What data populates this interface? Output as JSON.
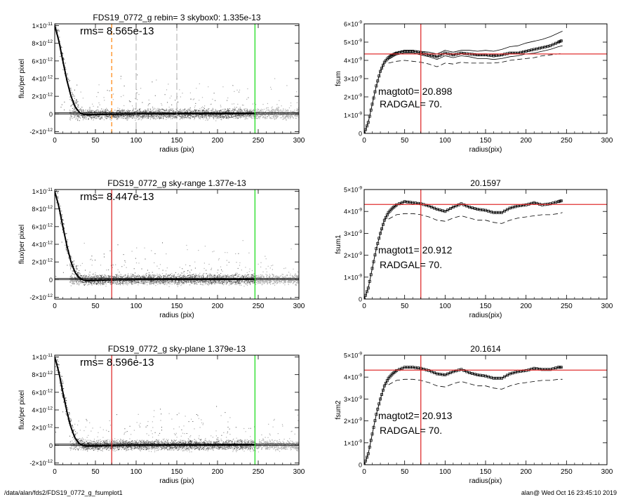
{
  "footer": {
    "left": "/data/alan/fds2/FDS19_0772_g_fsumplot1",
    "right": "alan@  Wed Oct 16 23:45:10 2019"
  },
  "colors": {
    "red": "#e03030",
    "green": "#22dd22",
    "orange": "#ff8c1a",
    "scatter_dark": "#4a4a4a",
    "scatter_light": "#b0b0b0"
  },
  "chart_data": [
    {
      "id": "p1",
      "type": "scatter",
      "title": "FDS19_0772_g rebin= 3    skybox0:  1.335e-13",
      "annotations": [
        "rms= 8.565e-13"
      ],
      "xlabel": "radius (pix)",
      "ylabel": "flux/per pixel",
      "xlim": [
        0,
        300
      ],
      "ylim": [
        -2.2e-12,
        1.02e-11
      ],
      "xticks": [
        0,
        50,
        100,
        150,
        200,
        250,
        300
      ],
      "yticks": [
        {
          "v": -2e-12,
          "m": "-2",
          "e": "-12"
        },
        {
          "v": 0,
          "m": "0",
          "e": ""
        },
        {
          "v": 2e-12,
          "m": "2",
          "e": "-12"
        },
        {
          "v": 4e-12,
          "m": "4",
          "e": "-12"
        },
        {
          "v": 6e-12,
          "m": "6",
          "e": "-12"
        },
        {
          "v": 8e-12,
          "m": "8",
          "e": "-12"
        },
        {
          "v": 1e-11,
          "m": "1",
          "e": "-11"
        }
      ],
      "profile": [
        [
          0,
          1e-11
        ],
        [
          5,
          8.3e-12
        ],
        [
          10,
          6e-12
        ],
        [
          15,
          3.8e-12
        ],
        [
          20,
          2e-12
        ],
        [
          25,
          8e-13
        ],
        [
          30,
          2e-13
        ],
        [
          35,
          -5e-14
        ],
        [
          40,
          -1e-13
        ],
        [
          50,
          -8e-14
        ],
        [
          60,
          -5e-14
        ],
        [
          80,
          -2e-14
        ],
        [
          100,
          0
        ],
        [
          150,
          2e-14
        ],
        [
          200,
          2e-14
        ],
        [
          245,
          4e-14
        ]
      ],
      "hlines": [
        0,
        1.3e-13
      ],
      "vlines": [
        {
          "x": 70,
          "color": "orange",
          "dash": true
        },
        {
          "x": 246,
          "color": "green",
          "dash": false
        },
        {
          "x": 100,
          "color": "gray",
          "dash": true
        },
        {
          "x": 150,
          "color": "gray",
          "dash": true
        }
      ]
    },
    {
      "id": "p2",
      "type": "line",
      "title": "",
      "annotations": [
        "magtot0=   20.898",
        "RADGAL=       70."
      ],
      "xlabel": "radius(pix)",
      "ylabel": "fsum",
      "xlim": [
        0,
        300
      ],
      "ylim": [
        0,
        6e-09
      ],
      "xticks": [
        0,
        50,
        100,
        150,
        200,
        250,
        300
      ],
      "yticks": [
        {
          "v": 0,
          "m": "0",
          "e": ""
        },
        {
          "v": 1e-09,
          "m": "1",
          "e": "-9"
        },
        {
          "v": 2e-09,
          "m": "2",
          "e": "-9"
        },
        {
          "v": 3e-09,
          "m": "3",
          "e": "-9"
        },
        {
          "v": 4e-09,
          "m": "4",
          "e": "-9"
        },
        {
          "v": 5e-09,
          "m": "5",
          "e": "-9"
        },
        {
          "v": 6e-09,
          "m": "6",
          "e": "-9"
        }
      ],
      "hline": 4.35e-09,
      "vline": 70,
      "series": [
        {
          "style": "squares",
          "x": [
            0,
            5,
            10,
            15,
            20,
            25,
            30,
            35,
            40,
            50,
            60,
            70,
            80,
            90,
            100,
            110,
            120,
            130,
            140,
            150,
            160,
            170,
            180,
            190,
            200,
            210,
            220,
            230,
            240,
            245
          ],
          "y": [
            0,
            0.6,
            1.6,
            2.6,
            3.4,
            3.9,
            4.15,
            4.3,
            4.4,
            4.5,
            4.5,
            4.42,
            4.3,
            4.2,
            4.4,
            4.3,
            4.4,
            4.35,
            4.3,
            4.3,
            4.25,
            4.3,
            4.4,
            4.4,
            4.5,
            4.6,
            4.7,
            4.8,
            5.0,
            5.1
          ]
        },
        {
          "style": "solid",
          "x": [
            30,
            40,
            50,
            60,
            70,
            80,
            90,
            100,
            110,
            120,
            130,
            140,
            150,
            160,
            170,
            180,
            190,
            200,
            210,
            220,
            230,
            240,
            245
          ],
          "y": [
            4.25,
            4.45,
            4.55,
            4.55,
            4.5,
            4.45,
            4.35,
            4.55,
            4.45,
            4.55,
            4.55,
            4.5,
            4.55,
            4.5,
            4.6,
            4.75,
            4.8,
            4.95,
            5.05,
            5.15,
            5.3,
            5.5,
            5.6
          ]
        },
        {
          "style": "solid",
          "x": [
            30,
            40,
            50,
            60,
            70,
            80,
            90,
            100,
            110,
            120,
            130,
            140,
            150,
            160,
            170,
            180,
            190,
            200,
            210,
            220,
            230,
            240,
            245
          ],
          "y": [
            4.05,
            4.3,
            4.4,
            4.4,
            4.3,
            4.2,
            4.05,
            4.25,
            4.15,
            4.25,
            4.2,
            4.1,
            4.1,
            4.05,
            4.1,
            4.2,
            4.25,
            4.35,
            4.4,
            4.5,
            4.6,
            4.75,
            4.8
          ]
        },
        {
          "style": "dashed",
          "x": [
            30,
            40,
            50,
            60,
            70,
            80,
            90,
            100,
            110,
            120,
            130,
            140,
            150,
            160,
            170,
            180,
            190,
            200,
            210,
            220,
            230,
            240,
            245
          ],
          "y": [
            3.85,
            3.95,
            4.0,
            3.95,
            3.9,
            3.8,
            3.65,
            3.85,
            3.8,
            3.9,
            3.85,
            3.85,
            3.85,
            3.85,
            3.9,
            4.0,
            4.05,
            4.1,
            4.15,
            4.25,
            4.3,
            4.35,
            4.4
          ]
        }
      ]
    },
    {
      "id": "p3",
      "type": "scatter",
      "title": "FDS19_0772_g sky-range  1.377e-13",
      "annotations": [
        "rms= 8.447e-13"
      ],
      "xlabel": "radius (pix)",
      "ylabel": "flux/per pixel",
      "xlim": [
        0,
        300
      ],
      "ylim": [
        -2.2e-12,
        1.02e-11
      ],
      "xticks": [
        0,
        50,
        100,
        150,
        200,
        250,
        300
      ],
      "yticks": [
        {
          "v": -2e-12,
          "m": "-2",
          "e": "-12"
        },
        {
          "v": 0,
          "m": "0",
          "e": ""
        },
        {
          "v": 2e-12,
          "m": "2",
          "e": "-12"
        },
        {
          "v": 4e-12,
          "m": "4",
          "e": "-12"
        },
        {
          "v": 6e-12,
          "m": "6",
          "e": "-12"
        },
        {
          "v": 8e-12,
          "m": "8",
          "e": "-12"
        },
        {
          "v": 1e-11,
          "m": "1",
          "e": "-11"
        }
      ],
      "profile": [
        [
          0,
          1e-11
        ],
        [
          5,
          8.3e-12
        ],
        [
          10,
          6e-12
        ],
        [
          15,
          3.8e-12
        ],
        [
          20,
          2e-12
        ],
        [
          25,
          8e-13
        ],
        [
          30,
          2e-13
        ],
        [
          35,
          -5e-14
        ],
        [
          40,
          -1e-13
        ],
        [
          50,
          -8e-14
        ],
        [
          60,
          -5e-14
        ],
        [
          80,
          -2e-14
        ],
        [
          100,
          0
        ],
        [
          150,
          2e-14
        ],
        [
          200,
          2e-14
        ],
        [
          245,
          4e-14
        ]
      ],
      "hlines": [
        0,
        1.3e-13
      ],
      "vlines": [
        {
          "x": 70,
          "color": "red",
          "dash": false
        },
        {
          "x": 246,
          "color": "green",
          "dash": false
        }
      ]
    },
    {
      "id": "p4",
      "type": "line",
      "title": "20.1597",
      "annotations": [
        "magtot1=   20.912",
        "RADGAL=       70."
      ],
      "xlabel": "radius(pix)",
      "ylabel": "fsum1",
      "xlim": [
        0,
        300
      ],
      "ylim": [
        0,
        5e-09
      ],
      "xticks": [
        0,
        50,
        100,
        150,
        200,
        250,
        300
      ],
      "yticks": [
        {
          "v": 0,
          "m": "0",
          "e": ""
        },
        {
          "v": 1e-09,
          "m": "1",
          "e": "-9"
        },
        {
          "v": 2e-09,
          "m": "2",
          "e": "-9"
        },
        {
          "v": 3e-09,
          "m": "3",
          "e": "-9"
        },
        {
          "v": 4e-09,
          "m": "4",
          "e": "-9"
        },
        {
          "v": 5e-09,
          "m": "5",
          "e": "-9"
        }
      ],
      "hline": 4.32e-09,
      "vline": 70,
      "series": [
        {
          "style": "squares",
          "x": [
            0,
            5,
            10,
            15,
            20,
            25,
            30,
            35,
            40,
            50,
            60,
            70,
            80,
            90,
            100,
            110,
            120,
            130,
            140,
            150,
            160,
            170,
            180,
            190,
            200,
            210,
            220,
            230,
            240,
            245
          ],
          "y": [
            0,
            0.5,
            1.4,
            2.3,
            3.0,
            3.6,
            3.95,
            4.15,
            4.3,
            4.45,
            4.4,
            4.35,
            4.25,
            4.1,
            4.0,
            4.2,
            4.35,
            4.2,
            4.1,
            4.05,
            3.95,
            3.95,
            4.15,
            4.25,
            4.3,
            4.4,
            4.3,
            4.35,
            4.45,
            4.5
          ]
        },
        {
          "style": "dashed",
          "x": [
            30,
            40,
            50,
            60,
            70,
            80,
            90,
            100,
            110,
            120,
            130,
            140,
            150,
            160,
            170,
            180,
            190,
            200,
            210,
            220,
            230,
            240,
            245
          ],
          "y": [
            3.65,
            3.85,
            3.9,
            3.9,
            3.85,
            3.75,
            3.6,
            3.55,
            3.7,
            3.8,
            3.7,
            3.6,
            3.6,
            3.5,
            3.45,
            3.6,
            3.7,
            3.75,
            3.8,
            3.85,
            3.85,
            3.9,
            3.95
          ]
        }
      ]
    },
    {
      "id": "p5",
      "type": "scatter",
      "title": "FDS19_0772_g sky-plane  1.379e-13",
      "annotations": [
        "rms= 8.596e-13"
      ],
      "xlabel": "radius (pix)",
      "ylabel": "flux/per pixel",
      "xlim": [
        0,
        300
      ],
      "ylim": [
        -2.2e-12,
        1.02e-11
      ],
      "xticks": [
        0,
        50,
        100,
        150,
        200,
        250,
        300
      ],
      "yticks": [
        {
          "v": -2e-12,
          "m": "-2",
          "e": "-12"
        },
        {
          "v": 0,
          "m": "0",
          "e": ""
        },
        {
          "v": 2e-12,
          "m": "2",
          "e": "-12"
        },
        {
          "v": 4e-12,
          "m": "4",
          "e": "-12"
        },
        {
          "v": 6e-12,
          "m": "6",
          "e": "-12"
        },
        {
          "v": 8e-12,
          "m": "8",
          "e": "-12"
        },
        {
          "v": 1e-11,
          "m": "1",
          "e": "-11"
        }
      ],
      "profile": [
        [
          0,
          1e-11
        ],
        [
          5,
          8.3e-12
        ],
        [
          10,
          6e-12
        ],
        [
          15,
          3.8e-12
        ],
        [
          20,
          2e-12
        ],
        [
          25,
          8e-13
        ],
        [
          30,
          2e-13
        ],
        [
          35,
          -5e-14
        ],
        [
          40,
          -1e-13
        ],
        [
          50,
          -8e-14
        ],
        [
          60,
          -5e-14
        ],
        [
          80,
          -2e-14
        ],
        [
          100,
          0
        ],
        [
          150,
          2e-14
        ],
        [
          200,
          2e-14
        ],
        [
          245,
          4e-14
        ]
      ],
      "hlines": [
        0,
        1.3e-13
      ],
      "vlines": [
        {
          "x": 70,
          "color": "red",
          "dash": false
        },
        {
          "x": 246,
          "color": "green",
          "dash": false
        }
      ]
    },
    {
      "id": "p6",
      "type": "line",
      "title": "20.1614",
      "annotations": [
        "magtot2=   20.913",
        "RADGAL=       70."
      ],
      "xlabel": "radius(pix)",
      "ylabel": "fsum2",
      "xlim": [
        0,
        300
      ],
      "ylim": [
        0,
        5e-09
      ],
      "xticks": [
        0,
        50,
        100,
        150,
        200,
        250,
        300
      ],
      "yticks": [
        {
          "v": 0,
          "m": "0",
          "e": ""
        },
        {
          "v": 1e-09,
          "m": "1",
          "e": "-9"
        },
        {
          "v": 2e-09,
          "m": "2",
          "e": "-9"
        },
        {
          "v": 3e-09,
          "m": "3",
          "e": "-9"
        },
        {
          "v": 4e-09,
          "m": "4",
          "e": "-9"
        },
        {
          "v": 5e-09,
          "m": "5",
          "e": "-9"
        }
      ],
      "hline": 4.32e-09,
      "vline": 70,
      "series": [
        {
          "style": "squares",
          "x": [
            0,
            5,
            10,
            15,
            20,
            25,
            30,
            35,
            40,
            50,
            60,
            70,
            80,
            90,
            100,
            110,
            120,
            130,
            140,
            150,
            160,
            170,
            180,
            190,
            200,
            210,
            220,
            230,
            240,
            245
          ],
          "y": [
            0,
            0.5,
            1.4,
            2.3,
            3.0,
            3.6,
            3.95,
            4.15,
            4.3,
            4.45,
            4.45,
            4.4,
            4.3,
            4.15,
            4.1,
            4.25,
            4.35,
            4.2,
            4.1,
            4.05,
            3.95,
            3.95,
            4.15,
            4.25,
            4.3,
            4.4,
            4.35,
            4.35,
            4.45,
            4.45
          ]
        },
        {
          "style": "dashed",
          "x": [
            30,
            40,
            50,
            60,
            70,
            80,
            90,
            100,
            110,
            120,
            130,
            140,
            150,
            160,
            170,
            180,
            190,
            200,
            210,
            220,
            230,
            240,
            245
          ],
          "y": [
            3.65,
            3.85,
            3.9,
            3.9,
            3.85,
            3.75,
            3.6,
            3.55,
            3.7,
            3.8,
            3.7,
            3.6,
            3.6,
            3.5,
            3.45,
            3.6,
            3.7,
            3.75,
            3.8,
            3.85,
            3.85,
            3.9,
            3.9
          ]
        }
      ]
    }
  ]
}
